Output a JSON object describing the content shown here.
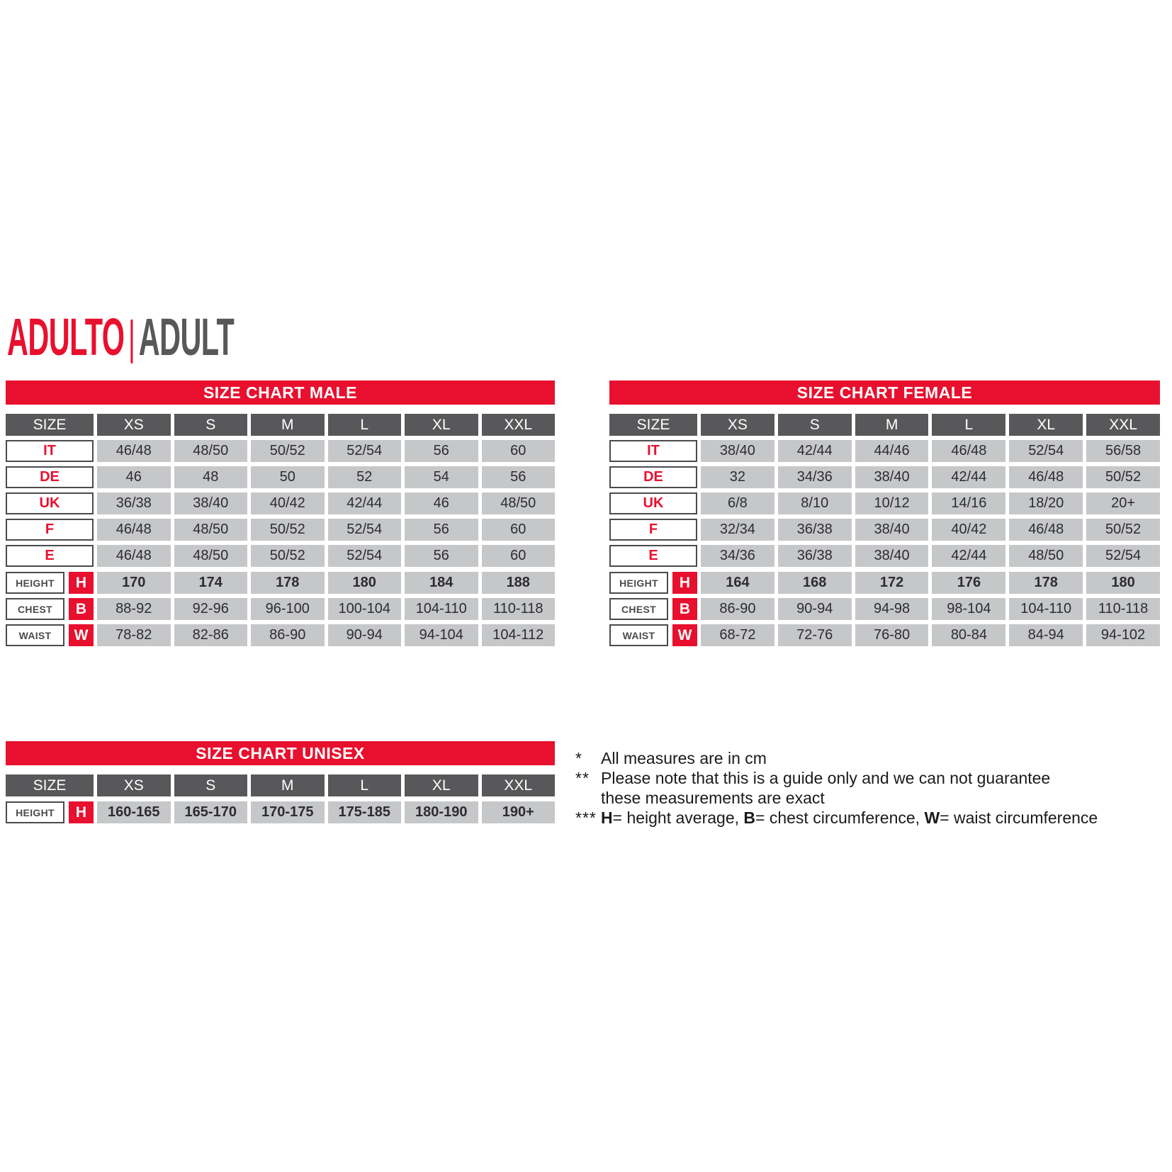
{
  "page": {
    "title_primary": "ADULTO",
    "title_separator": "|",
    "title_secondary": "ADULT"
  },
  "colors": {
    "red": "#E8102E",
    "header_gray": "#58585A",
    "cell_gray": "#C6C7C9",
    "text_dark": "#2D2D2F",
    "label_border": "#4B4B4D"
  },
  "columns": [
    "SIZE",
    "XS",
    "S",
    "M",
    "L",
    "XL",
    "XXL"
  ],
  "tables": [
    {
      "id": "male",
      "title": "SIZE CHART MALE",
      "size_rows": [
        {
          "label": "IT",
          "values": [
            "46/48",
            "48/50",
            "50/52",
            "52/54",
            "56",
            "60"
          ]
        },
        {
          "label": "DE",
          "values": [
            "46",
            "48",
            "50",
            "52",
            "54",
            "56"
          ]
        },
        {
          "label": "UK",
          "values": [
            "36/38",
            "38/40",
            "40/42",
            "42/44",
            "46",
            "48/50"
          ]
        },
        {
          "label": "F",
          "values": [
            "46/48",
            "48/50",
            "50/52",
            "52/54",
            "56",
            "60"
          ]
        },
        {
          "label": "E",
          "values": [
            "46/48",
            "48/50",
            "50/52",
            "52/54",
            "56",
            "60"
          ]
        }
      ],
      "measure_rows": [
        {
          "label": "HEIGHT",
          "key": "H",
          "bold": true,
          "values": [
            "170",
            "174",
            "178",
            "180",
            "184",
            "188"
          ]
        },
        {
          "label": "CHEST",
          "key": "B",
          "bold": false,
          "values": [
            "88-92",
            "92-96",
            "96-100",
            "100-104",
            "104-110",
            "110-118"
          ]
        },
        {
          "label": "WAIST",
          "key": "W",
          "bold": false,
          "values": [
            "78-82",
            "82-86",
            "86-90",
            "90-94",
            "94-104",
            "104-112"
          ]
        }
      ]
    },
    {
      "id": "female",
      "title": "SIZE CHART FEMALE",
      "size_rows": [
        {
          "label": "IT",
          "values": [
            "38/40",
            "42/44",
            "44/46",
            "46/48",
            "52/54",
            "56/58"
          ]
        },
        {
          "label": "DE",
          "values": [
            "32",
            "34/36",
            "38/40",
            "42/44",
            "46/48",
            "50/52"
          ]
        },
        {
          "label": "UK",
          "values": [
            "6/8",
            "8/10",
            "10/12",
            "14/16",
            "18/20",
            "20+"
          ]
        },
        {
          "label": "F",
          "values": [
            "32/34",
            "36/38",
            "38/40",
            "40/42",
            "46/48",
            "50/52"
          ]
        },
        {
          "label": "E",
          "values": [
            "34/36",
            "36/38",
            "38/40",
            "42/44",
            "48/50",
            "52/54"
          ]
        }
      ],
      "measure_rows": [
        {
          "label": "HEIGHT",
          "key": "H",
          "bold": true,
          "values": [
            "164",
            "168",
            "172",
            "176",
            "178",
            "180"
          ]
        },
        {
          "label": "CHEST",
          "key": "B",
          "bold": false,
          "values": [
            "86-90",
            "90-94",
            "94-98",
            "98-104",
            "104-110",
            "110-118"
          ]
        },
        {
          "label": "WAIST",
          "key": "W",
          "bold": false,
          "values": [
            "68-72",
            "72-76",
            "76-80",
            "80-84",
            "84-94",
            "94-102"
          ]
        }
      ]
    },
    {
      "id": "unisex",
      "title": "SIZE CHART UNISEX",
      "size_rows": [],
      "measure_rows": [
        {
          "label": "HEIGHT",
          "key": "H",
          "bold": true,
          "values": [
            "160-165",
            "165-170",
            "170-175",
            "175-185",
            "180-190",
            "190+"
          ]
        }
      ]
    }
  ],
  "footnotes": [
    {
      "marker": "*",
      "segments": [
        {
          "text": "All measures are in cm"
        }
      ]
    },
    {
      "marker": "**",
      "segments": [
        {
          "text": "Please note that this is a guide only and we can not guarantee"
        },
        {
          "br": true
        },
        {
          "text": "these measurements are exact"
        }
      ]
    },
    {
      "marker": "***",
      "segments": [
        {
          "bold": "H"
        },
        {
          "text": "= height average, "
        },
        {
          "bold": "B"
        },
        {
          "text": "= chest circumference, "
        },
        {
          "bold": "W"
        },
        {
          "text": "= waist circumference"
        }
      ]
    }
  ]
}
